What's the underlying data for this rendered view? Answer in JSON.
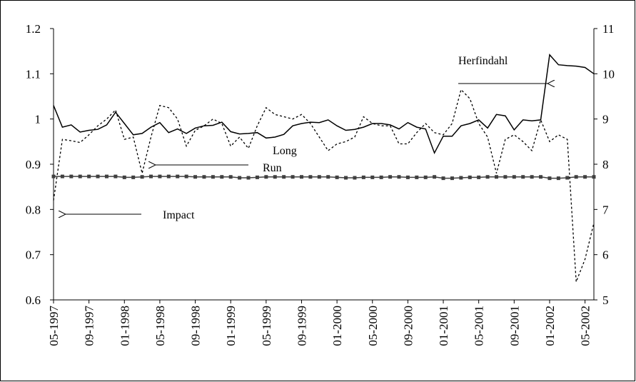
{
  "chart_data": {
    "type": "line",
    "categories": [
      "05-1997",
      null,
      null,
      null,
      "09-1997",
      null,
      null,
      null,
      "01-1998",
      null,
      null,
      null,
      "05-1998",
      null,
      null,
      null,
      "09-1998",
      null,
      null,
      null,
      "01-1999",
      null,
      null,
      null,
      "05-1999",
      null,
      null,
      null,
      "09-1999",
      null,
      null,
      null,
      "01-2000",
      null,
      null,
      null,
      "05-2000",
      null,
      null,
      null,
      "09-2000",
      null,
      null,
      null,
      "01-2001",
      null,
      null,
      null,
      "05-2001",
      null,
      null,
      null,
      "09-2001",
      null,
      null,
      null,
      "01-2002",
      null,
      null,
      null,
      "05-2002",
      null
    ],
    "ylim": [
      0.6,
      1.2
    ],
    "yticks": [
      0.6,
      0.7,
      0.8,
      0.9,
      1,
      1.1,
      1.2
    ],
    "y2lim": [
      5,
      11
    ],
    "y2ticks": [
      5,
      6,
      7,
      8,
      9,
      10,
      11
    ],
    "series": [
      {
        "name": "Herfindahl",
        "color": "#000000",
        "style": "solid",
        "axis": "y2",
        "values": [
          9.3,
          8.82,
          8.87,
          8.71,
          8.75,
          8.77,
          8.87,
          9.15,
          8.9,
          8.65,
          8.68,
          8.82,
          8.92,
          8.7,
          8.78,
          8.68,
          8.8,
          8.85,
          8.86,
          8.93,
          8.72,
          8.67,
          8.68,
          8.7,
          8.58,
          8.6,
          8.66,
          8.85,
          8.9,
          8.93,
          8.92,
          8.98,
          8.85,
          8.75,
          8.77,
          8.82,
          8.9,
          8.9,
          8.87,
          8.78,
          8.92,
          8.82,
          8.78,
          8.25,
          8.62,
          8.62,
          8.85,
          8.9,
          8.98,
          8.8,
          9.1,
          9.07,
          8.76,
          8.98,
          8.96,
          8.98,
          10.42,
          10.2,
          10.18,
          10.17,
          10.14,
          10.0
        ]
      },
      {
        "name": "Long Run",
        "color": "#404040",
        "style": "squares",
        "values": [
          0.873,
          0.873,
          0.873,
          0.873,
          0.873,
          0.873,
          0.873,
          0.873,
          0.871,
          0.871,
          0.872,
          0.873,
          0.873,
          0.873,
          0.873,
          0.873,
          0.872,
          0.872,
          0.872,
          0.872,
          0.872,
          0.87,
          0.87,
          0.871,
          0.872,
          0.872,
          0.872,
          0.872,
          0.872,
          0.872,
          0.872,
          0.872,
          0.871,
          0.87,
          0.87,
          0.871,
          0.871,
          0.871,
          0.872,
          0.872,
          0.871,
          0.871,
          0.871,
          0.872,
          0.869,
          0.869,
          0.87,
          0.871,
          0.871,
          0.872,
          0.872,
          0.872,
          0.872,
          0.872,
          0.872,
          0.872,
          0.869,
          0.869,
          0.87,
          0.872,
          0.872,
          0.872
        ]
      },
      {
        "name": "Impact",
        "color": "#000000",
        "style": "dotted",
        "values": [
          0.82,
          0.955,
          0.952,
          0.948,
          0.965,
          0.985,
          1.0,
          1.02,
          0.955,
          0.96,
          0.88,
          0.96,
          1.03,
          1.025,
          1.0,
          0.94,
          0.975,
          0.985,
          1.0,
          0.99,
          0.94,
          0.96,
          0.935,
          0.985,
          1.025,
          1.01,
          1.005,
          1.0,
          1.01,
          0.99,
          0.96,
          0.93,
          0.945,
          0.95,
          0.96,
          1.005,
          0.99,
          0.985,
          0.985,
          0.945,
          0.945,
          0.97,
          0.99,
          0.97,
          0.965,
          0.99,
          1.065,
          1.045,
          0.99,
          0.96,
          0.88,
          0.955,
          0.965,
          0.95,
          0.93,
          0.998,
          0.95,
          0.965,
          0.955,
          0.64,
          0.69,
          0.77
        ]
      }
    ]
  }
}
